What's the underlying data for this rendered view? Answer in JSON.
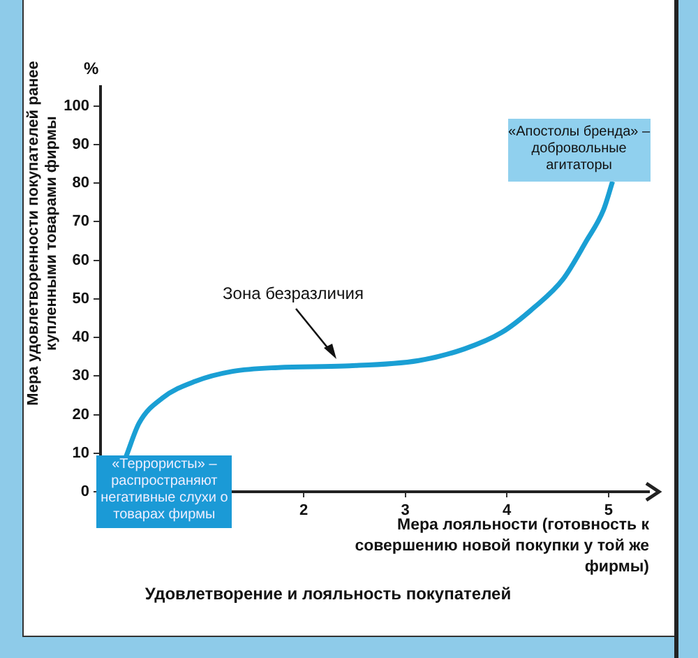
{
  "chart_data": {
    "type": "line",
    "title": "Удовлетворение и лояльность покупателей",
    "xlabel": "Мера лояльности (готовность к совершению новой покупки у той же фирмы)",
    "ylabel": "Мера удовлетворенности покупателей ранее купленными товарами фирмы",
    "x": [
      0.25,
      0.38,
      0.61,
      0.93,
      1.3,
      1.75,
      2.4,
      3.13,
      3.58,
      3.95,
      4.27,
      4.55,
      4.78,
      4.95,
      5.04
    ],
    "series": [
      {
        "color": "#1a9fd4",
        "values": [
          9,
          17.8,
          24.3,
          28.6,
          31.2,
          32.2,
          32.6,
          34,
          37,
          41.3,
          47.8,
          55,
          64.9,
          73,
          80.4
        ]
      }
    ],
    "xlim": [
      0,
      5.4
    ],
    "ylim": [
      0,
      105
    ],
    "xticks": [
      2,
      3,
      4,
      5
    ],
    "yticks": [
      0,
      10,
      20,
      30,
      40,
      50,
      60,
      70,
      80,
      90,
      100
    ],
    "grid": false,
    "legend": false,
    "annotations": [
      "%",
      "Зона безразличия",
      {
        "text": "«Террористы» – распространяют негативные слухи о товарах фирмы",
        "x": 0.25,
        "y": 9
      },
      {
        "text": "«Апостолы бренда» – добровольные агитаторы",
        "x": 5.04,
        "y": 80.4
      }
    ]
  }
}
